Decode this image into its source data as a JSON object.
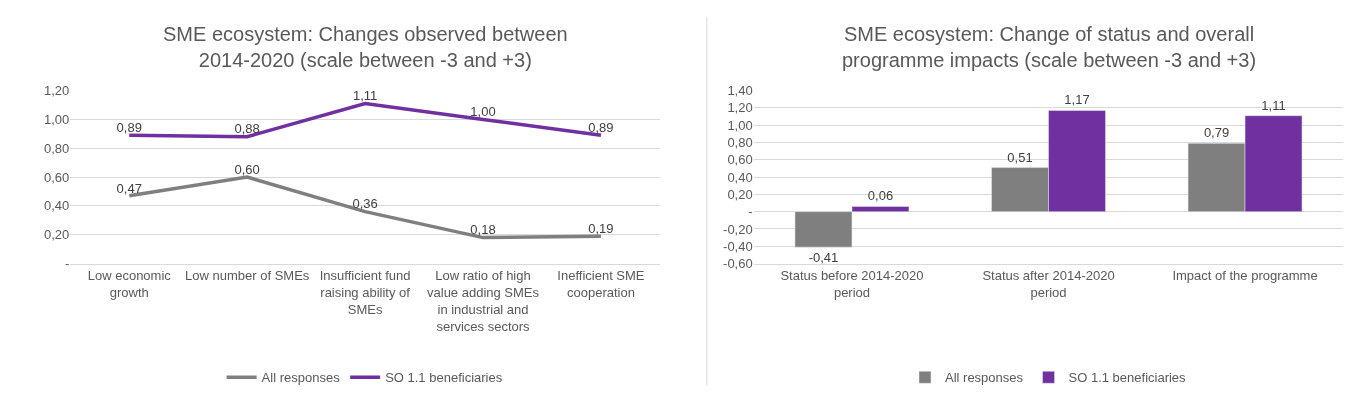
{
  "chart_data": [
    {
      "type": "line",
      "title": "SME ecosystem: Changes observed between 2014-2020 (scale between -3 and +3)",
      "categories": [
        "Low economic growth",
        "Low number of SMEs",
        "Insufficient fund raising ability of SMEs",
        "Low ratio of high value adding SMEs in industrial and services sectors",
        "Inefficient SME cooperation"
      ],
      "series": [
        {
          "name": "All responses",
          "color": "#7f7f7f",
          "values": [
            0.47,
            0.6,
            0.36,
            0.18,
            0.19
          ],
          "value_labels": [
            "0,47",
            "0,60",
            "0,36",
            "0,18",
            "0,19"
          ]
        },
        {
          "name": "SO 1.1 beneficiaries",
          "color": "#7030a0",
          "values": [
            0.89,
            0.88,
            1.11,
            1.0,
            0.89
          ],
          "value_labels": [
            "0,89",
            "0,88",
            "1,11",
            "1,00",
            "0,89"
          ]
        }
      ],
      "ylim": [
        0,
        1.2
      ],
      "yticks": [
        {
          "value": 0,
          "label": "-"
        },
        {
          "value": 0.2,
          "label": "0,20"
        },
        {
          "value": 0.4,
          "label": "0,40"
        },
        {
          "value": 0.6,
          "label": "0,60"
        },
        {
          "value": 0.8,
          "label": "0,80"
        },
        {
          "value": 1.0,
          "label": "1,00"
        },
        {
          "value": 1.2,
          "label": "1,20"
        }
      ],
      "grid": "y",
      "legend": "bottom",
      "marker": "none"
    },
    {
      "type": "bar",
      "title": "SME ecosystem: Change of status and overall programme impacts (scale between -3 and +3)",
      "categories": [
        "Status before 2014-2020 period",
        "Status after 2014-2020 period",
        "Impact of the programme"
      ],
      "series": [
        {
          "name": "All responses",
          "color": "#7f7f7f",
          "values": [
            -0.41,
            0.51,
            0.79
          ],
          "value_labels": [
            "-0,41",
            "0,51",
            "0,79"
          ]
        },
        {
          "name": "SO 1.1 beneficiaries",
          "color": "#7030a0",
          "values": [
            0.06,
            1.17,
            1.11
          ],
          "value_labels": [
            "0,06",
            "1,17",
            "1,11"
          ]
        }
      ],
      "ylim": [
        -0.6,
        1.4
      ],
      "yticks": [
        {
          "value": -0.6,
          "label": "-0,60"
        },
        {
          "value": -0.4,
          "label": "-0,40"
        },
        {
          "value": -0.2,
          "label": "-0,20"
        },
        {
          "value": 0,
          "label": "-"
        },
        {
          "value": 0.2,
          "label": "0,20"
        },
        {
          "value": 0.4,
          "label": "0,40"
        },
        {
          "value": 0.6,
          "label": "0,60"
        },
        {
          "value": 0.8,
          "label": "0,80"
        },
        {
          "value": 1.0,
          "label": "1,00"
        },
        {
          "value": 1.2,
          "label": "1,20"
        },
        {
          "value": 1.4,
          "label": "1,40"
        }
      ],
      "grid": "y",
      "legend": "bottom"
    }
  ]
}
